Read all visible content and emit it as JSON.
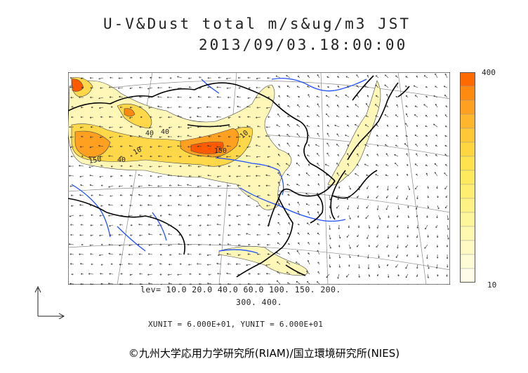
{
  "header": {
    "title_line1": "U-V&Dust total m/s&ug/m3 JST",
    "title_line2": "2013/09/03.18:00:00"
  },
  "colorbar": {
    "max_label": "400",
    "min_label": "10",
    "colors": [
      "#ff6a00",
      "#ff8a10",
      "#ffa020",
      "#ffb62c",
      "#ffc836",
      "#ffd640",
      "#ffe24e",
      "#ffea5e",
      "#ffee70",
      "#fff284",
      "#fff59a",
      "#fff8b0",
      "#fffac4",
      "#fffcd6",
      "#fffde8"
    ]
  },
  "map": {
    "contour_labels": [
      "10",
      "40",
      "150",
      "40",
      "10",
      "40",
      "150"
    ],
    "colors": {
      "land_outline": "#000000",
      "rivers": "#1f4fff",
      "graticule": "#8a8a8a",
      "dust_light": "#fff7b8",
      "dust_mid": "#ffd84a",
      "dust_high": "#ffa020",
      "dust_peak": "#ff5a00"
    }
  },
  "legend_text": {
    "levels_line1": "lev= 10.0 20.0 40.0 60.0 100. 150. 200.",
    "levels_line2": "300. 400.",
    "units": "XUNIT = 6.000E+01, YUNIT = 6.000E+01"
  },
  "footer": {
    "credit": "©九州大学応用力学研究所(RIAM)/国立環境研究所(NIES)"
  }
}
